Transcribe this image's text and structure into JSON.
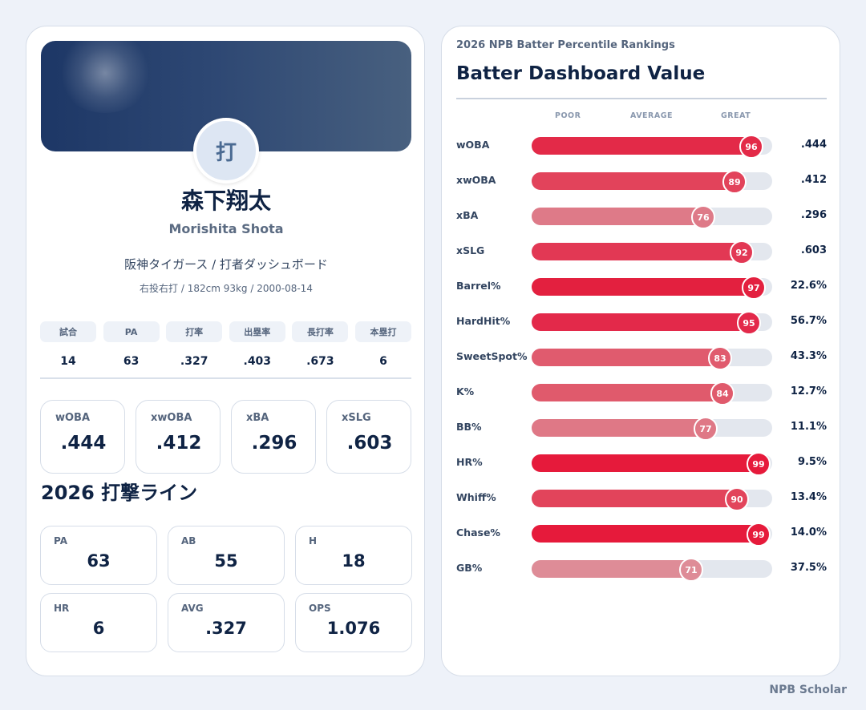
{
  "player": {
    "avatar_char": "打",
    "name_jp": "森下翔太",
    "name_en": "Morishita Shota",
    "team_line": "阪神タイガース / 打者ダッシュボード",
    "bio_line": "右投右打 / 182cm 93kg / 2000-08-14"
  },
  "summary_stats": [
    {
      "label": "試合",
      "value": "14"
    },
    {
      "label": "PA",
      "value": "63"
    },
    {
      "label": "打率",
      "value": ".327"
    },
    {
      "label": "出塁率",
      "value": ".403"
    },
    {
      "label": "長打率",
      "value": ".673"
    },
    {
      "label": "本塁打",
      "value": "6"
    }
  ],
  "metrics": [
    {
      "label": "wOBA",
      "value": ".444"
    },
    {
      "label": "xwOBA",
      "value": ".412"
    },
    {
      "label": "xBA",
      "value": ".296"
    },
    {
      "label": "xSLG",
      "value": ".603"
    }
  ],
  "batting_line": {
    "title": "2026 打撃ライン",
    "items": [
      {
        "label": "PA",
        "value": "63"
      },
      {
        "label": "AB",
        "value": "55"
      },
      {
        "label": "H",
        "value": "18"
      },
      {
        "label": "HR",
        "value": "6"
      },
      {
        "label": "AVG",
        "value": ".327"
      },
      {
        "label": "OPS",
        "value": "1.076"
      }
    ]
  },
  "rankings": {
    "subtitle": "2026 NPB Batter Percentile Rankings",
    "title": "Batter Dashboard Value",
    "scale": {
      "poor": "POOR",
      "average": "AVERAGE",
      "great": "GREAT"
    },
    "rows": [
      {
        "stat": "wOBA",
        "percentile": 96,
        "value": ".444",
        "color": "#e32a48"
      },
      {
        "stat": "xwOBA",
        "percentile": 89,
        "value": ".412",
        "color": "#e2435b"
      },
      {
        "stat": "xBA",
        "percentile": 76,
        "value": ".296",
        "color": "#de7a88"
      },
      {
        "stat": "xSLG",
        "percentile": 92,
        "value": ".603",
        "color": "#e23854"
      },
      {
        "stat": "Barrel%",
        "percentile": 97,
        "value": "22.6%",
        "color": "#e3203f"
      },
      {
        "stat": "HardHit%",
        "percentile": 95,
        "value": "56.7%",
        "color": "#e3294a"
      },
      {
        "stat": "SweetSpot%",
        "percentile": 83,
        "value": "43.3%",
        "color": "#e05b6e"
      },
      {
        "stat": "K%",
        "percentile": 84,
        "value": "12.7%",
        "color": "#e05a6c"
      },
      {
        "stat": "BB%",
        "percentile": 77,
        "value": "11.1%",
        "color": "#df7886"
      },
      {
        "stat": "HR%",
        "percentile": 99,
        "value": "9.5%",
        "color": "#e61a3b"
      },
      {
        "stat": "Whiff%",
        "percentile": 90,
        "value": "13.4%",
        "color": "#e2445b"
      },
      {
        "stat": "Chase%",
        "percentile": 99,
        "value": "14.0%",
        "color": "#e61a3b"
      },
      {
        "stat": "GB%",
        "percentile": 71,
        "value": "37.5%",
        "color": "#de8c97"
      }
    ]
  },
  "footer": "NPB Scholar"
}
